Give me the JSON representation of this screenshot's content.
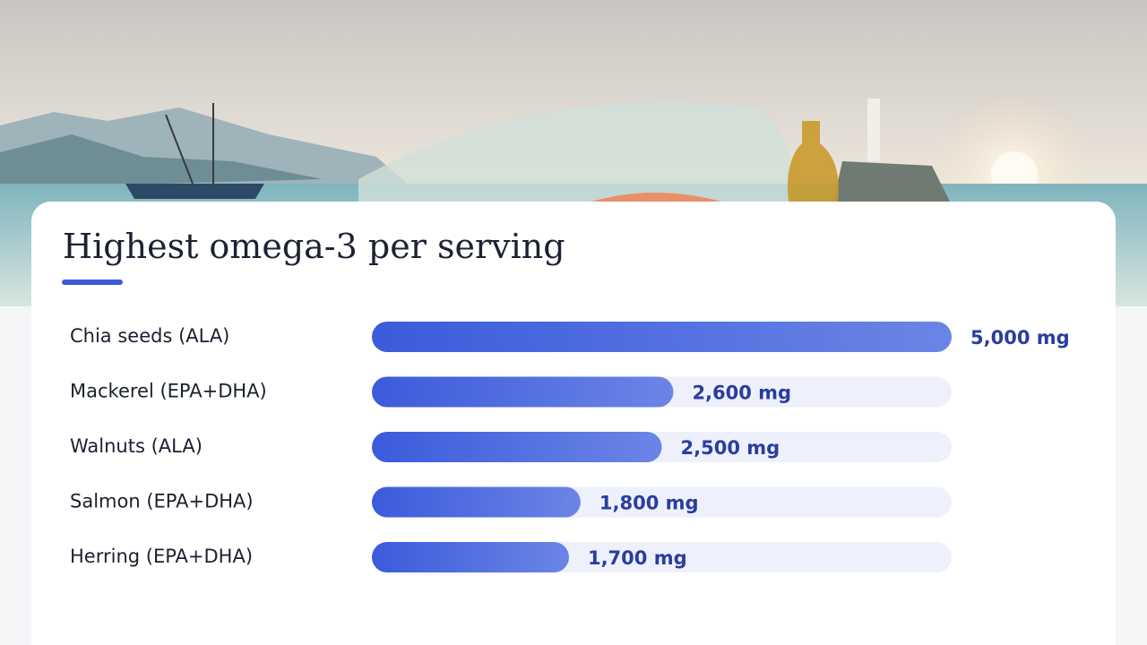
{
  "chart_data": {
    "type": "bar",
    "orientation": "horizontal",
    "title": "Highest omega-3 per serving",
    "categories": [
      "Chia seeds (ALA)",
      "Mackerel (EPA+DHA)",
      "Walnuts (ALA)",
      "Salmon (EPA+DHA)",
      "Herring (EPA+DHA)"
    ],
    "values": [
      5000,
      2600,
      2500,
      1800,
      1700
    ],
    "value_labels": [
      "5,000 mg",
      "2,600 mg",
      "2,500 mg",
      "1,800 mg",
      "1,700 mg"
    ],
    "color": "#3b5bdb"
  }
}
